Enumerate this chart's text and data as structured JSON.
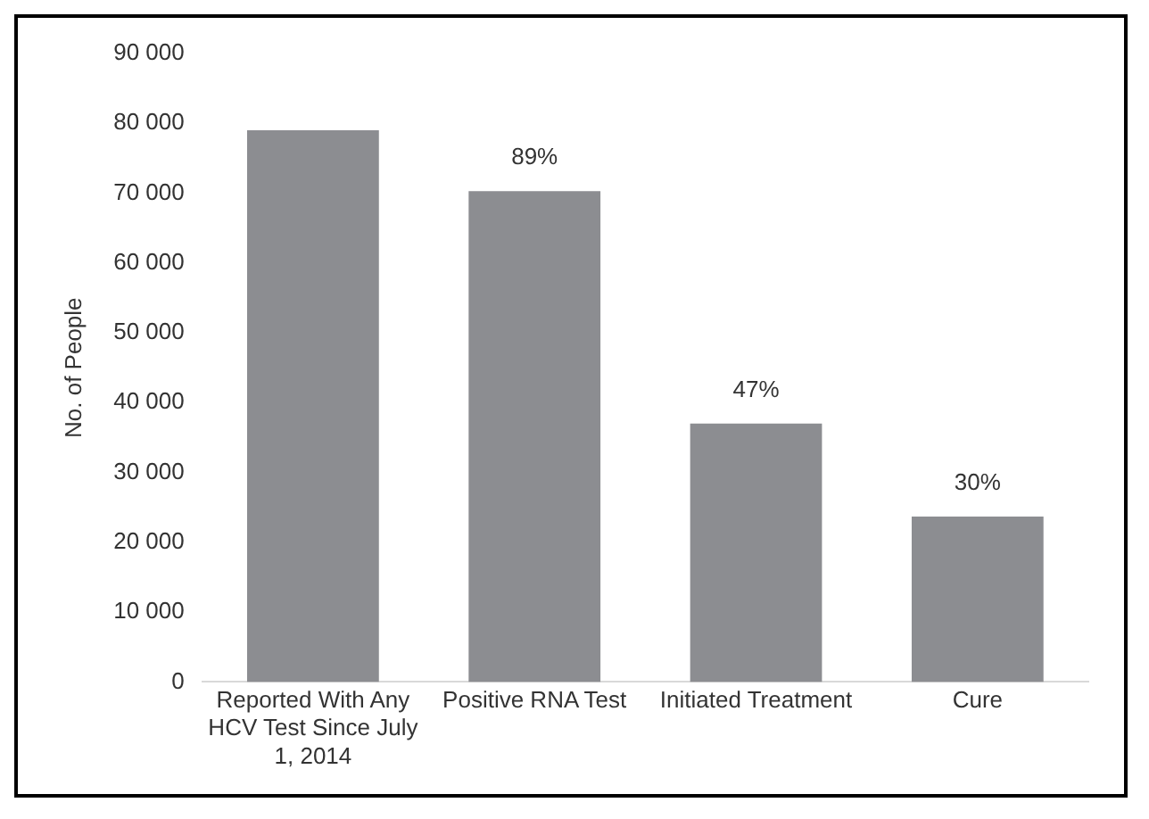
{
  "chart_data": {
    "type": "bar",
    "ylabel": "No. of People",
    "categories": [
      "Reported With Any HCV Test Since July 1, 2014",
      "Positive RNA Test",
      "Initiated Treatment",
      "Cure"
    ],
    "values": [
      79000,
      70300,
      37000,
      23700
    ],
    "color": "#8c8d91",
    "annotations": [
      {
        "text": "89%",
        "x": "Positive RNA Test",
        "y": 70300
      },
      {
        "text": "47%",
        "x": "Initiated Treatment",
        "y": 37000
      },
      {
        "text": "30%",
        "x": "Cure",
        "y": 23700
      }
    ],
    "ylim": [
      0,
      90000
    ],
    "yticks": [
      {
        "value": 0,
        "label": "0"
      },
      {
        "value": 10000,
        "label": "10 000"
      },
      {
        "value": 20000,
        "label": "20 000"
      },
      {
        "value": 30000,
        "label": "30 000"
      },
      {
        "value": 40000,
        "label": "40 000"
      },
      {
        "value": 50000,
        "label": "50 000"
      },
      {
        "value": 60000,
        "label": "60 000"
      },
      {
        "value": 70000,
        "label": "70 000"
      },
      {
        "value": 80000,
        "label": "80 000"
      },
      {
        "value": 90000,
        "label": "90 000"
      }
    ],
    "grid": false,
    "legend": false
  }
}
